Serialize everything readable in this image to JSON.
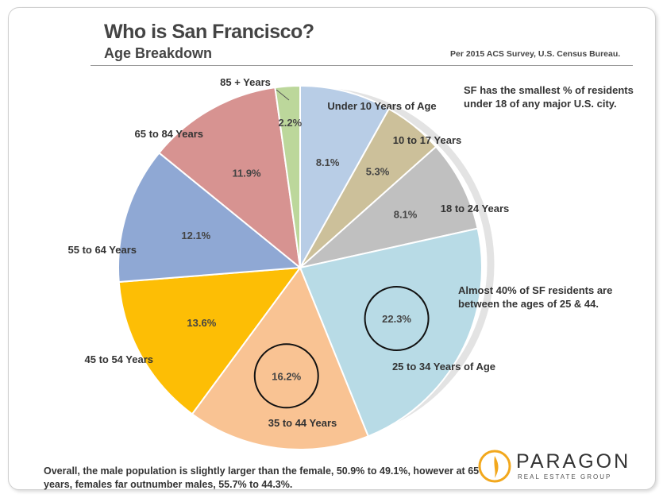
{
  "header": {
    "title": "Who is San Francisco?",
    "subtitle": "Age Breakdown",
    "source": "Per 2015 ACS Survey, U.S. Census Bureau."
  },
  "notes": {
    "top_right": "SF has the smallest % of residents under 18 of any major U.S. city.",
    "middle_right": "Almost 40% of SF residents are between the ages of 25 & 44."
  },
  "footer": "Overall, the male population is slightly larger than the female, 50.9% to 49.1%, however at 65+ years, females far outnumber males, 55.7% to 44.3%.",
  "logo": {
    "word": "PARAGON",
    "sub": "REAL ESTATE GROUP"
  },
  "colors": {
    "under10": "#b8cde6",
    "10to17": "#ccc09a",
    "18to24": "#c0c0c0",
    "25to34": "#b8dbe6",
    "35to44": "#f9c393",
    "45to54": "#fdbe05",
    "55to64": "#8fa8d4",
    "65to84": "#d79391",
    "85plus": "#bcd79b",
    "ring": "#e3e3e3",
    "logo_accent": "#f2a81d"
  },
  "chart_data": {
    "type": "pie",
    "title": "Who is San Francisco?",
    "slices": [
      {
        "name": "Under 10 Years of Age",
        "value": 8.1,
        "label": "8.1%",
        "color": "#b8cde6",
        "circled": false
      },
      {
        "name": "10 to 17 Years",
        "value": 5.3,
        "label": "5.3%",
        "color": "#ccc09a",
        "circled": false
      },
      {
        "name": "18 to 24 Years",
        "value": 8.1,
        "label": "8.1%",
        "color": "#c0c0c0",
        "circled": false
      },
      {
        "name": "25 to 34 Years of Age",
        "value": 22.3,
        "label": "22.3%",
        "color": "#b8dbe6",
        "circled": true
      },
      {
        "name": "35 to 44 Years",
        "value": 16.2,
        "label": "16.2%",
        "color": "#f9c393",
        "circled": true
      },
      {
        "name": "45 to 54 Years",
        "value": 13.6,
        "label": "13.6%",
        "color": "#fdbe05",
        "circled": false
      },
      {
        "name": "55 to 64 Years",
        "value": 12.1,
        "label": "12.1%",
        "color": "#8fa8d4",
        "circled": false
      },
      {
        "name": "65 to 84 Years",
        "value": 11.9,
        "label": "11.9%",
        "color": "#d79391",
        "circled": false
      },
      {
        "name": "85 + Years",
        "value": 2.2,
        "label": "2.2%",
        "color": "#bcd79b",
        "circled": false
      }
    ]
  }
}
